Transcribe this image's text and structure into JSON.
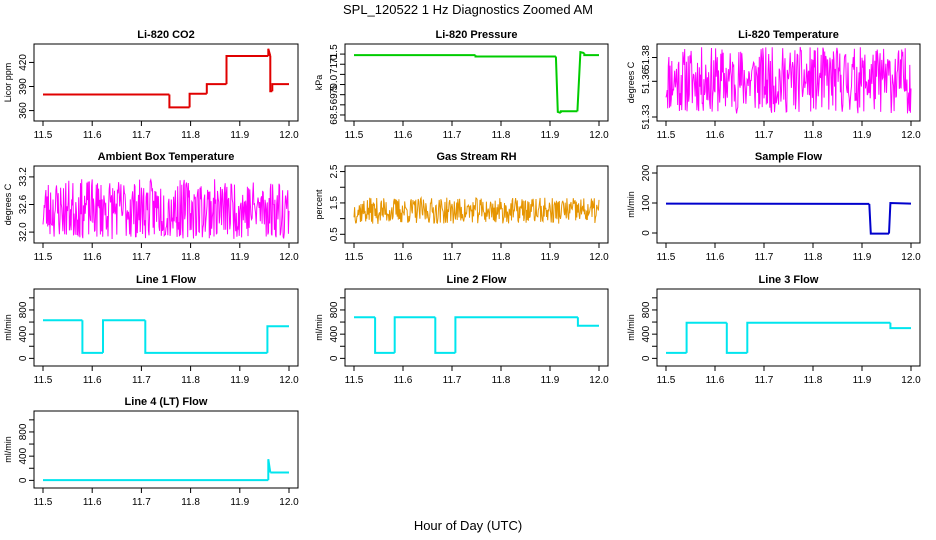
{
  "figure": {
    "title": "SPL_120522  1 Hz Diagnostics Zoomed AM",
    "xlabel": "Hour of Day (UTC)"
  },
  "chart_data": [
    {
      "type": "line",
      "title": "Li-820 CO2",
      "ylabel": "Licor ppm",
      "color": "#e00000",
      "xlim": [
        11.5,
        12.0
      ],
      "ylim": [
        352,
        438
      ],
      "xticks": [
        "11.5",
        "11.6",
        "11.7",
        "11.8",
        "11.9",
        "12.0"
      ],
      "yticks": [
        360,
        390,
        420
      ],
      "style": "line",
      "segments": [
        {
          "x": [
            11.5,
            11.757
          ],
          "y": [
            380,
            380
          ]
        },
        {
          "x": [
            11.757,
            11.757,
            11.798
          ],
          "y": [
            380,
            364,
            364
          ]
        },
        {
          "x": [
            11.798,
            11.798,
            11.833
          ],
          "y": [
            364,
            381,
            381
          ]
        },
        {
          "x": [
            11.833,
            11.833,
            11.873
          ],
          "y": [
            381,
            393,
            393
          ]
        },
        {
          "x": [
            11.873,
            11.873,
            11.958
          ],
          "y": [
            393,
            428,
            428
          ]
        },
        {
          "x": [
            11.958,
            11.958,
            11.962
          ],
          "y": [
            428,
            437,
            428
          ]
        },
        {
          "x": [
            11.962,
            11.962,
            11.966
          ],
          "y": [
            428,
            384,
            384
          ]
        },
        {
          "x": [
            11.966,
            11.966,
            12.0
          ],
          "y": [
            384,
            393,
            393
          ]
        }
      ]
    },
    {
      "type": "line",
      "title": "Li-820 Pressure",
      "ylabel": "kPa",
      "color": "#00cc00",
      "xlim": [
        11.5,
        12.0
      ],
      "ylim": [
        68.4,
        71.8
      ],
      "xticks": [
        "11.5",
        "11.6",
        "11.7",
        "11.8",
        "11.9",
        "12.0"
      ],
      "yticks": [
        68.5,
        69.0,
        69.5,
        70.0,
        70.5,
        71.0,
        71.5
      ],
      "ytick_labels": [
        "68.5",
        "",
        "69.5",
        "70.0",
        "",
        "71.0",
        "71.5"
      ],
      "style": "line",
      "segments": [
        {
          "x": [
            11.5,
            11.748
          ],
          "y": [
            71.45,
            71.45
          ]
        },
        {
          "x": [
            11.748,
            11.748,
            11.912
          ],
          "y": [
            71.45,
            71.38,
            71.38
          ]
        },
        {
          "x": [
            11.912,
            11.916,
            11.922
          ],
          "y": [
            71.38,
            68.65,
            68.6
          ]
        },
        {
          "x": [
            11.922,
            11.922,
            11.956
          ],
          "y": [
            68.6,
            68.68,
            68.68
          ]
        },
        {
          "x": [
            11.956,
            11.962,
            11.97
          ],
          "y": [
            68.68,
            71.6,
            71.55
          ]
        },
        {
          "x": [
            11.97,
            11.97,
            12.0
          ],
          "y": [
            71.55,
            71.45,
            71.45
          ]
        }
      ]
    },
    {
      "type": "line",
      "title": "Li-820 Temperature",
      "ylabel": "degrees C",
      "color": "#ff00ff",
      "xlim": [
        11.5,
        12.0
      ],
      "ylim": [
        51.33,
        51.388
      ],
      "xticks": [
        "11.5",
        "11.6",
        "11.7",
        "11.8",
        "11.9",
        "12.0"
      ],
      "yticks": [
        51.33,
        51.36,
        51.38
      ],
      "ytick_labels": [
        "51.33",
        "51.36",
        "51.38"
      ],
      "style": "noise",
      "noise": {
        "center": 51.361,
        "amp": 0.028,
        "seed": 11
      }
    },
    {
      "type": "line",
      "title": "Ambient Box Temperature",
      "ylabel": "degrees C",
      "color": "#ff00ff",
      "xlim": [
        11.5,
        12.0
      ],
      "ylim": [
        31.85,
        33.35
      ],
      "xticks": [
        "11.5",
        "11.6",
        "11.7",
        "11.8",
        "11.9",
        "12.0"
      ],
      "yticks": [
        32.0,
        32.6,
        33.2
      ],
      "ytick_labels": [
        "32.0",
        "32.6",
        "33.2"
      ],
      "style": "noise",
      "noise": {
        "center": 32.5,
        "amp": 0.65,
        "seed": 23
      }
    },
    {
      "type": "line",
      "title": "Gas Stream RH",
      "ylabel": "percent",
      "color": "#e69500",
      "xlim": [
        11.5,
        12.0
      ],
      "ylim": [
        0.35,
        2.55
      ],
      "xticks": [
        "11.5",
        "11.6",
        "11.7",
        "11.8",
        "11.9",
        "12.0"
      ],
      "yticks": [
        0.5,
        1.0,
        1.5,
        2.0,
        2.5
      ],
      "ytick_labels": [
        "0.5",
        "",
        "1.5",
        "",
        "2.5"
      ],
      "style": "noise",
      "noise": {
        "center": 1.25,
        "amp": 0.42,
        "seed": 37
      }
    },
    {
      "type": "line",
      "title": "Sample Flow",
      "ylabel": "ml/min",
      "color": "#0000cc",
      "xlim": [
        11.5,
        12.0
      ],
      "ylim": [
        -20,
        210
      ],
      "xticks": [
        "11.5",
        "11.6",
        "11.7",
        "11.8",
        "11.9",
        "12.0"
      ],
      "yticks": [
        0,
        100,
        200
      ],
      "style": "line",
      "segments": [
        {
          "x": [
            11.5,
            11.915
          ],
          "y": [
            98,
            97
          ]
        },
        {
          "x": [
            11.915,
            11.918,
            11.955
          ],
          "y": [
            97,
            -2,
            -2
          ]
        },
        {
          "x": [
            11.955,
            11.958,
            12.0
          ],
          "y": [
            -2,
            100,
            98
          ]
        }
      ]
    },
    {
      "type": "line",
      "title": "Line 1 Flow",
      "ylabel": "ml/min",
      "color": "#00e5ee",
      "xlim": [
        11.5,
        12.0
      ],
      "ylim": [
        -60,
        1080
      ],
      "xticks": [
        "11.5",
        "11.6",
        "11.7",
        "11.8",
        "11.9",
        "12.0"
      ],
      "yticks": [
        0,
        200,
        400,
        600,
        800,
        1000
      ],
      "ytick_labels": [
        "0",
        "",
        "400",
        "",
        "800",
        ""
      ],
      "style": "line",
      "segments": [
        {
          "x": [
            11.5,
            11.58
          ],
          "y": [
            630,
            630
          ]
        },
        {
          "x": [
            11.58,
            11.58,
            11.622
          ],
          "y": [
            630,
            90,
            90
          ]
        },
        {
          "x": [
            11.622,
            11.622,
            11.708
          ],
          "y": [
            90,
            630,
            630
          ]
        },
        {
          "x": [
            11.708,
            11.708,
            11.956
          ],
          "y": [
            630,
            90,
            90
          ]
        },
        {
          "x": [
            11.956,
            11.956,
            12.0
          ],
          "y": [
            90,
            530,
            530
          ]
        }
      ]
    },
    {
      "type": "line",
      "title": "Line 2 Flow",
      "ylabel": "ml/min",
      "color": "#00e5ee",
      "xlim": [
        11.5,
        12.0
      ],
      "ylim": [
        -60,
        1080
      ],
      "xticks": [
        "11.5",
        "11.6",
        "11.7",
        "11.8",
        "11.9",
        "12.0"
      ],
      "yticks": [
        0,
        200,
        400,
        600,
        800,
        1000
      ],
      "ytick_labels": [
        "0",
        "",
        "400",
        "",
        "800",
        ""
      ],
      "style": "line",
      "segments": [
        {
          "x": [
            11.5,
            11.543
          ],
          "y": [
            680,
            680
          ]
        },
        {
          "x": [
            11.543,
            11.543,
            11.583
          ],
          "y": [
            680,
            90,
            90
          ]
        },
        {
          "x": [
            11.583,
            11.583,
            11.666
          ],
          "y": [
            90,
            680,
            680
          ]
        },
        {
          "x": [
            11.666,
            11.666,
            11.707
          ],
          "y": [
            680,
            90,
            90
          ]
        },
        {
          "x": [
            11.707,
            11.707,
            11.957
          ],
          "y": [
            90,
            680,
            680
          ]
        },
        {
          "x": [
            11.957,
            11.957,
            12.0
          ],
          "y": [
            680,
            540,
            540
          ]
        }
      ]
    },
    {
      "type": "line",
      "title": "Line 3 Flow",
      "ylabel": "ml/min",
      "color": "#00e5ee",
      "xlim": [
        11.5,
        12.0
      ],
      "ylim": [
        -60,
        1080
      ],
      "xticks": [
        "11.5",
        "11.6",
        "11.7",
        "11.8",
        "11.9",
        "12.0"
      ],
      "yticks": [
        0,
        200,
        400,
        600,
        800,
        1000
      ],
      "ytick_labels": [
        "0",
        "",
        "400",
        "",
        "800",
        ""
      ],
      "style": "line",
      "segments": [
        {
          "x": [
            11.5,
            11.542
          ],
          "y": [
            90,
            90
          ]
        },
        {
          "x": [
            11.542,
            11.542,
            11.624
          ],
          "y": [
            90,
            590,
            590
          ]
        },
        {
          "x": [
            11.624,
            11.624,
            11.666
          ],
          "y": [
            590,
            90,
            90
          ]
        },
        {
          "x": [
            11.666,
            11.666,
            11.958
          ],
          "y": [
            90,
            590,
            590
          ]
        },
        {
          "x": [
            11.958,
            11.958,
            12.0
          ],
          "y": [
            590,
            500,
            500
          ]
        }
      ]
    },
    {
      "type": "line",
      "title": "Line 4 (LT) Flow",
      "ylabel": "ml/min",
      "color": "#00e5ee",
      "xlim": [
        11.5,
        12.0
      ],
      "ylim": [
        -60,
        1080
      ],
      "xticks": [
        "11.5",
        "11.6",
        "11.7",
        "11.8",
        "11.9",
        "12.0"
      ],
      "yticks": [
        0,
        200,
        400,
        600,
        800,
        1000
      ],
      "ytick_labels": [
        "0",
        "",
        "400",
        "",
        "800",
        ""
      ],
      "style": "line",
      "segments": [
        {
          "x": [
            11.5,
            11.958
          ],
          "y": [
            5,
            5
          ]
        },
        {
          "x": [
            11.958,
            11.958,
            11.962
          ],
          "y": [
            5,
            350,
            130
          ]
        },
        {
          "x": [
            11.962,
            12.0
          ],
          "y": [
            130,
            130
          ]
        }
      ]
    }
  ]
}
